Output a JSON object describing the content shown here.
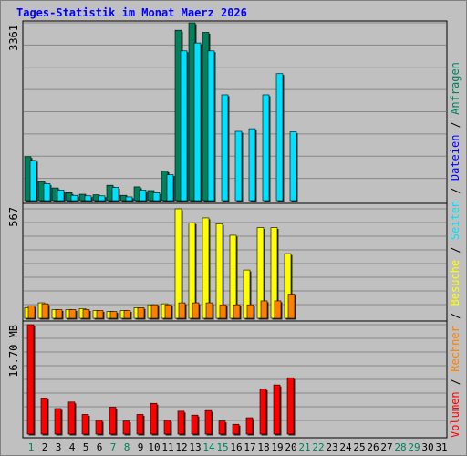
{
  "chart_data": {
    "type": "bar",
    "title": "Tages-Statistik im Monat Maerz 2026",
    "categories": [
      "1",
      "2",
      "3",
      "4",
      "5",
      "6",
      "7",
      "8",
      "9",
      "10",
      "11",
      "12",
      "13",
      "14",
      "15",
      "16",
      "17",
      "18",
      "19",
      "20",
      "21",
      "22",
      "23",
      "24",
      "25",
      "26",
      "27",
      "28",
      "29",
      "30",
      "31"
    ],
    "weekend_days": [
      "1",
      "7",
      "8",
      "14",
      "15",
      "21",
      "22",
      "28",
      "29"
    ],
    "panels": [
      {
        "max_label": "3361",
        "ylim": [
          0,
          3361
        ],
        "series": [
          {
            "name": "Anfragen",
            "color": "#00805c",
            "values": [
              830,
              360,
              240,
              150,
              120,
              110,
              290,
              100,
              260,
              190,
              560,
              3220,
              3361,
              3180,
              null,
              null,
              null,
              null,
              null,
              null,
              null,
              null,
              null,
              null,
              null,
              null,
              null,
              null,
              null,
              null,
              null
            ]
          },
          {
            "name": "Dateien",
            "color": "#0000ff",
            "values": [
              0,
              0,
              0,
              0,
              0,
              0,
              0,
              0,
              0,
              0,
              0,
              0,
              0,
              0,
              0,
              0,
              0,
              0,
              0,
              0,
              null,
              null,
              null,
              null,
              null,
              null,
              null,
              null,
              null,
              null,
              null
            ]
          },
          {
            "name": "Seiten",
            "color": "#00e0ff",
            "values": [
              760,
              320,
              200,
              100,
              90,
              90,
              250,
              70,
              200,
              150,
              490,
              2830,
              2980,
              2830,
              2000,
              1310,
              1360,
              2000,
              2400,
              1300,
              null,
              null,
              null,
              null,
              null,
              null,
              null,
              null,
              null,
              null,
              null
            ]
          }
        ]
      },
      {
        "max_label": "567",
        "ylim": [
          0,
          567
        ],
        "series": [
          {
            "name": "Besuche",
            "color": "#ffff00",
            "values": [
              55,
              80,
              45,
              45,
              50,
              40,
              35,
              40,
              55,
              70,
              75,
              567,
              495,
              520,
              490,
              430,
              250,
              470,
              470,
              335,
              null,
              null,
              null,
              null,
              null,
              null,
              null,
              null,
              null,
              null,
              null
            ]
          },
          {
            "name": "Rechner",
            "color": "#ff8000",
            "values": [
              65,
              75,
              45,
              45,
              45,
              40,
              35,
              40,
              55,
              70,
              70,
              80,
              80,
              80,
              70,
              70,
              70,
              90,
              90,
              125,
              null,
              null,
              null,
              null,
              null,
              null,
              null,
              null,
              null,
              null,
              null
            ]
          }
        ]
      },
      {
        "max_label": "16.70 MB",
        "ylim": [
          0,
          16.7
        ],
        "series": [
          {
            "name": "Volumen",
            "color": "#ff0000",
            "values": [
              16.7,
              5.5,
              3.9,
              4.9,
              3.0,
              2.1,
              4.1,
              2.0,
              3.0,
              4.7,
              2.1,
              3.5,
              2.9,
              3.6,
              2.0,
              1.5,
              2.5,
              6.9,
              7.5,
              8.6,
              null,
              null,
              null,
              null,
              null,
              null,
              null,
              null,
              null,
              null,
              null
            ]
          }
        ]
      }
    ],
    "legend": [
      {
        "name": "Volumen",
        "color": "#ff0000"
      },
      {
        "name": "Rechner",
        "color": "#ff8000"
      },
      {
        "name": "Besuche",
        "color": "#ffff00"
      },
      {
        "name": "Seiten",
        "color": "#00e0ff"
      },
      {
        "name": "Dateien",
        "color": "#0000ff"
      },
      {
        "name": "Anfragen",
        "color": "#00805c"
      }
    ],
    "legend_separator": "/",
    "colors": {
      "title": "#0000ff",
      "weekday": "#000000",
      "weekend": "#00805c",
      "separator": "#000000"
    }
  }
}
